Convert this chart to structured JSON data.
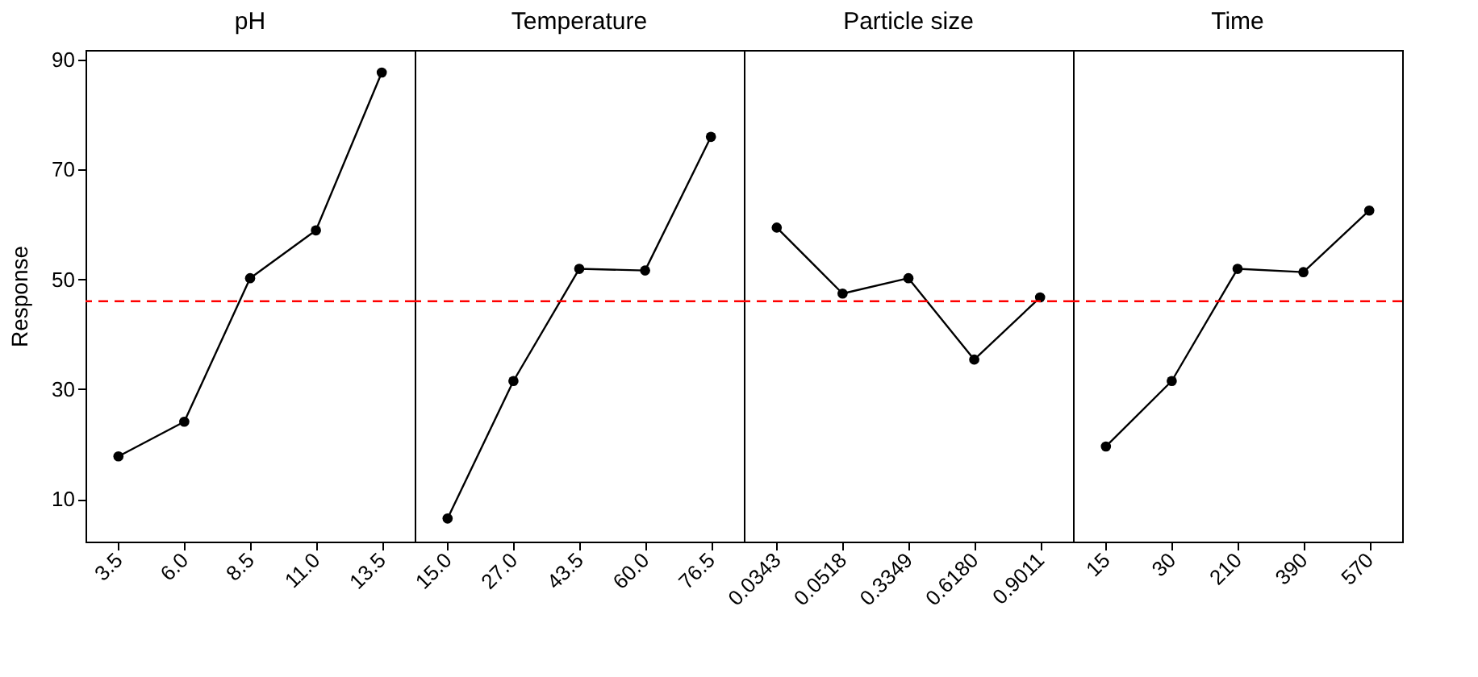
{
  "chart_data": [
    {
      "type": "line",
      "title": "pH",
      "ylabel": "Response",
      "categories": [
        "3.5",
        "6.0",
        "8.5",
        "11.0",
        "13.5"
      ],
      "series": [
        {
          "color": "#000000",
          "values": [
            17.8,
            24.1,
            50.2,
            58.9,
            87.6
          ]
        }
      ],
      "ylim": [
        2.3,
        91.7
      ],
      "yticks": [
        10,
        30,
        50,
        70,
        90
      ],
      "ref_lines": [
        {
          "axis": "y",
          "value": 46.0,
          "color": "#ff0000",
          "line_style": "dashed"
        }
      ],
      "marker": "circle",
      "grid": false
    },
    {
      "type": "line",
      "title": "Temperature",
      "categories": [
        "15.0",
        "27.0",
        "43.5",
        "60.0",
        "76.5"
      ],
      "series": [
        {
          "color": "#000000",
          "values": [
            6.5,
            31.5,
            51.9,
            51.6,
            75.9
          ]
        }
      ],
      "ylim": [
        2.3,
        91.7
      ],
      "yticks": [
        10,
        30,
        50,
        70,
        90
      ],
      "tick_labels": "x",
      "ref_lines": [
        {
          "axis": "y",
          "value": 46.0,
          "color": "#ff0000",
          "line_style": "dashed"
        }
      ],
      "marker": "circle",
      "grid": false
    },
    {
      "type": "line",
      "title": "Particle size",
      "categories": [
        "0.0343",
        "0.0518",
        "0.3349",
        "0.6180",
        "0.9011"
      ],
      "series": [
        {
          "color": "#000000",
          "values": [
            59.4,
            47.4,
            50.2,
            35.4,
            46.7
          ]
        }
      ],
      "ylim": [
        2.3,
        91.7
      ],
      "yticks": [
        10,
        30,
        50,
        70,
        90
      ],
      "tick_labels": "x",
      "ref_lines": [
        {
          "axis": "y",
          "value": 46.0,
          "color": "#ff0000",
          "line_style": "dashed"
        }
      ],
      "marker": "circle",
      "grid": false
    },
    {
      "type": "line",
      "title": "Time",
      "categories": [
        "15",
        "30",
        "210",
        "390",
        "570"
      ],
      "series": [
        {
          "color": "#000000",
          "values": [
            19.6,
            31.5,
            51.9,
            51.3,
            62.5
          ]
        }
      ],
      "ylim": [
        2.3,
        91.7
      ],
      "yticks": [
        10,
        30,
        50,
        70,
        90
      ],
      "tick_labels": "x",
      "ref_lines": [
        {
          "axis": "y",
          "value": 46.0,
          "color": "#ff0000",
          "line_style": "dashed"
        }
      ],
      "marker": "circle",
      "grid": false
    }
  ]
}
